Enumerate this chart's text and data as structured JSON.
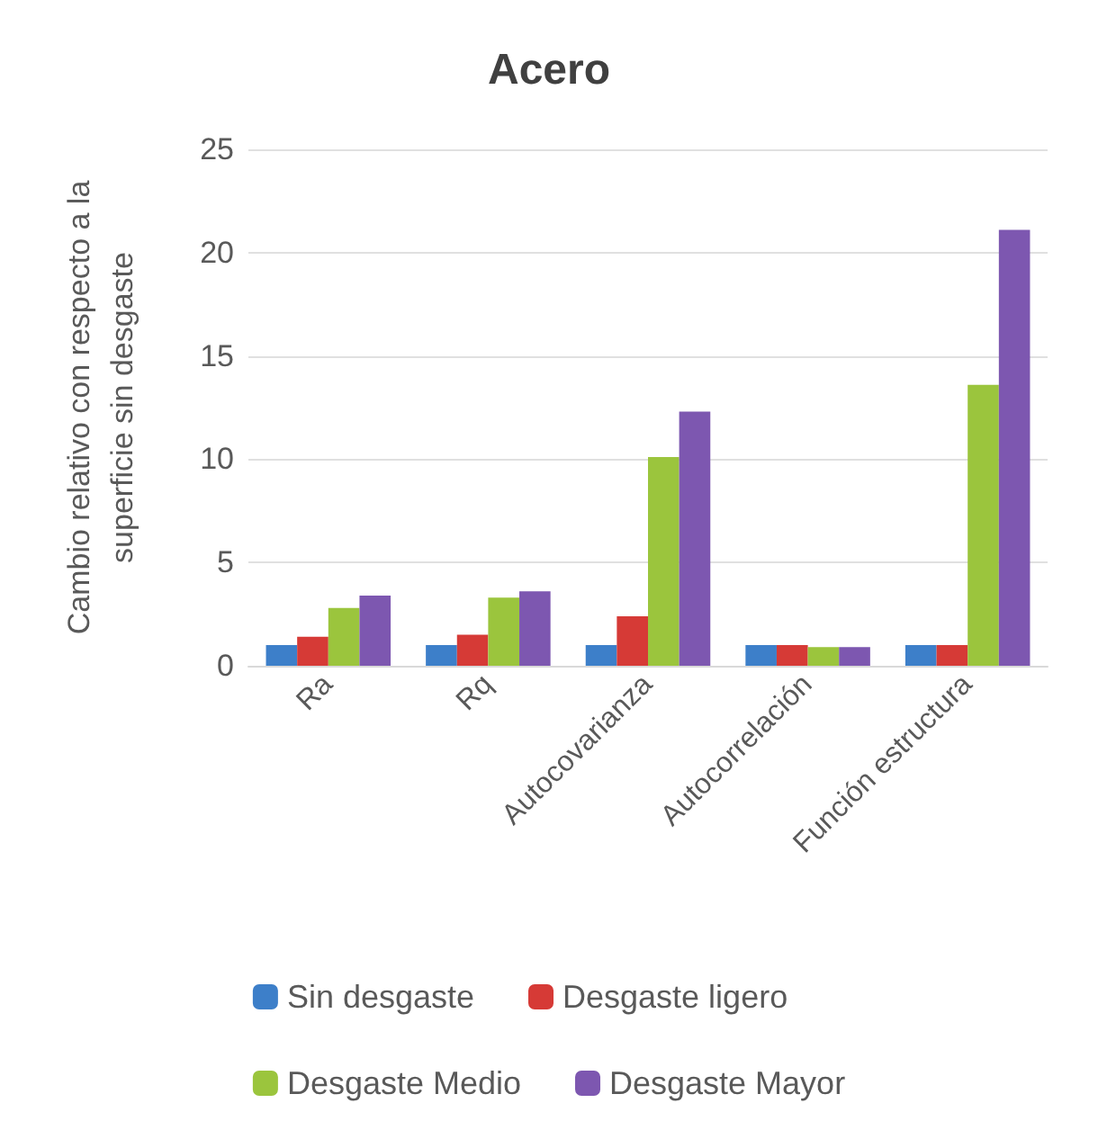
{
  "chart_data": {
    "type": "bar",
    "title": "Acero",
    "ylabel": "Cambio relativo con respecto a la superficie sin desgaste",
    "categories": [
      "Ra",
      "Rq",
      "Autocovarianza",
      "Autocorrelación",
      "Función estructura"
    ],
    "series": [
      {
        "name": "Sin desgaste",
        "color": "#3d7fc9",
        "values": [
          1,
          1,
          1,
          1,
          1
        ]
      },
      {
        "name": "Desgaste ligero",
        "color": "#d63a36",
        "values": [
          1.4,
          1.5,
          2.4,
          1,
          1
        ]
      },
      {
        "name": "Desgaste Medio",
        "color": "#9bc53d",
        "values": [
          2.8,
          3.3,
          10.1,
          0.9,
          13.6
        ]
      },
      {
        "name": "Desgaste Mayor",
        "color": "#7d57b0",
        "values": [
          3.4,
          3.6,
          12.3,
          0.9,
          21.1
        ]
      }
    ],
    "ylim": [
      0,
      25
    ],
    "yticks": [
      0,
      5,
      10,
      15,
      20,
      25
    ],
    "grid": "y",
    "legend": "bottom"
  }
}
